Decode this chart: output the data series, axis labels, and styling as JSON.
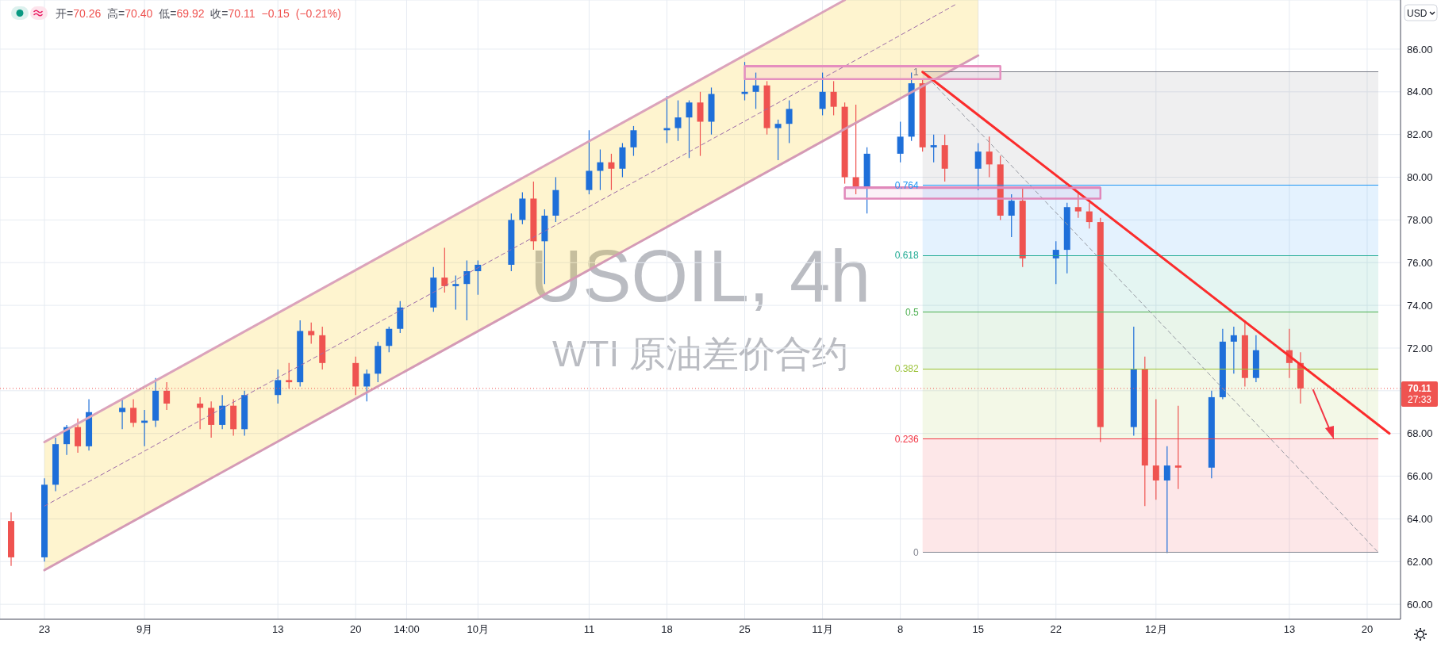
{
  "chart_data": {
    "type": "candlestick",
    "title": "USOIL, 4h",
    "subtitle": "WTI 原油差价合约",
    "ylabel": "USD",
    "annotations": [
      "开=70.26 高=70.40 低=69.92 收=70.11 −0.15 (−0.21%)",
      "27:33"
    ],
    "x": [
      "--08-20",
      "--08-23",
      "--08-24",
      "--08-25",
      "--08-26",
      "--08-27",
      "--08-30",
      "--08-31",
      "--09-01",
      "--09-02",
      "--09-03",
      "--09-06",
      "--09-07",
      "--09-08",
      "--09-09",
      "--09-10",
      "--09-13",
      "--09-14",
      "--09-15",
      "--09-16",
      "--09-17",
      "--09-20",
      "--09-21",
      "--09-22",
      "--09-23",
      "--09-24",
      "--09-27",
      "--09-28",
      "--09-29",
      "--09-30",
      "--10-01",
      "--10-04",
      "--10-05",
      "--10-06",
      "--10-07",
      "--10-08",
      "--10-11",
      "--10-12",
      "--10-13",
      "--10-14",
      "--10-15",
      "--10-18",
      "--10-19",
      "--10-20",
      "--10-21",
      "--10-22",
      "--10-25",
      "--10-26",
      "--10-27",
      "--10-28",
      "--10-29",
      "--11-01",
      "--11-02",
      "--11-03",
      "--11-04",
      "--11-05",
      "--11-08",
      "--11-09",
      "--11-10",
      "--11-11",
      "--11-12",
      "--11-15",
      "--11-16",
      "--11-17",
      "--11-18",
      "--11-19",
      "--11-22",
      "--11-23",
      "--11-24",
      "--11-25",
      "--11-26",
      "--11-29",
      "--11-30",
      "--12-01",
      "--12-02",
      "--12-03",
      "--12-06",
      "--12-07",
      "--12-08",
      "--12-09",
      "--12-10",
      "--12-13",
      "--12-14"
    ],
    "ohlc": [
      [
        63.9,
        64.3,
        61.8,
        62.2
      ],
      [
        62.2,
        65.9,
        62.0,
        65.6
      ],
      [
        65.6,
        67.8,
        65.3,
        67.5
      ],
      [
        67.5,
        68.4,
        67.0,
        68.3
      ],
      [
        68.3,
        68.7,
        67.1,
        67.4
      ],
      [
        67.4,
        69.6,
        67.2,
        69.0
      ],
      [
        69.0,
        69.6,
        68.2,
        69.2
      ],
      [
        69.2,
        69.6,
        68.3,
        68.5
      ],
      [
        68.5,
        69.1,
        67.4,
        68.6
      ],
      [
        68.6,
        70.6,
        68.3,
        70.0
      ],
      [
        70.0,
        70.4,
        69.1,
        69.4
      ],
      [
        69.4,
        69.7,
        68.2,
        69.2
      ],
      [
        69.2,
        69.5,
        67.8,
        68.4
      ],
      [
        68.4,
        69.8,
        68.2,
        69.3
      ],
      [
        69.3,
        69.6,
        67.9,
        68.2
      ],
      [
        68.2,
        70.0,
        67.9,
        69.8
      ],
      [
        69.8,
        71.0,
        69.4,
        70.5
      ],
      [
        70.5,
        71.3,
        70.1,
        70.4
      ],
      [
        70.4,
        73.3,
        70.2,
        72.8
      ],
      [
        72.8,
        73.2,
        72.2,
        72.6
      ],
      [
        72.6,
        73.0,
        71.0,
        71.3
      ],
      [
        71.3,
        71.6,
        69.8,
        70.2
      ],
      [
        70.2,
        71.0,
        69.5,
        70.8
      ],
      [
        70.8,
        72.3,
        70.4,
        72.1
      ],
      [
        72.1,
        73.0,
        71.8,
        72.9
      ],
      [
        72.9,
        74.2,
        72.7,
        73.9
      ],
      [
        73.9,
        75.8,
        73.7,
        75.3
      ],
      [
        75.3,
        76.7,
        74.6,
        74.9
      ],
      [
        74.9,
        75.4,
        73.8,
        75.0
      ],
      [
        75.0,
        76.1,
        73.3,
        75.6
      ],
      [
        75.6,
        76.1,
        74.5,
        75.9
      ],
      [
        75.9,
        78.3,
        75.6,
        78.0
      ],
      [
        78.0,
        79.3,
        77.8,
        79.0
      ],
      [
        79.0,
        79.8,
        76.6,
        77.0
      ],
      [
        77.0,
        78.5,
        75.0,
        78.2
      ],
      [
        78.2,
        80.0,
        77.9,
        79.4
      ],
      [
        79.4,
        82.2,
        79.2,
        80.3
      ],
      [
        80.3,
        81.3,
        79.4,
        80.7
      ],
      [
        80.7,
        81.1,
        79.4,
        80.4
      ],
      [
        80.4,
        81.6,
        80.0,
        81.4
      ],
      [
        81.4,
        82.4,
        81.0,
        82.2
      ],
      [
        82.2,
        83.8,
        81.6,
        82.3
      ],
      [
        82.3,
        83.6,
        81.7,
        82.8
      ],
      [
        82.8,
        83.6,
        80.9,
        83.5
      ],
      [
        83.5,
        84.0,
        81.0,
        82.6
      ],
      [
        82.6,
        84.2,
        82.0,
        83.9
      ],
      [
        83.9,
        85.4,
        83.6,
        84.0
      ],
      [
        84.0,
        84.9,
        83.2,
        84.3
      ],
      [
        84.3,
        84.5,
        82.0,
        82.3
      ],
      [
        82.3,
        82.7,
        80.8,
        82.5
      ],
      [
        82.5,
        83.6,
        81.6,
        83.2
      ],
      [
        83.2,
        84.9,
        82.9,
        84.0
      ],
      [
        84.0,
        84.5,
        82.9,
        83.3
      ],
      [
        83.3,
        83.5,
        79.7,
        80.0
      ],
      [
        80.0,
        83.4,
        79.2,
        79.5
      ],
      [
        79.5,
        81.4,
        78.3,
        81.1
      ],
      [
        81.1,
        82.6,
        80.7,
        81.9
      ],
      [
        81.9,
        84.9,
        81.7,
        84.4
      ],
      [
        84.4,
        84.6,
        81.2,
        81.4
      ],
      [
        81.4,
        82.0,
        80.7,
        81.5
      ],
      [
        81.5,
        82.0,
        79.8,
        80.4
      ],
      [
        80.4,
        81.6,
        79.4,
        81.2
      ],
      [
        81.2,
        81.9,
        80.0,
        80.6
      ],
      [
        80.6,
        81.0,
        78.0,
        78.2
      ],
      [
        78.2,
        79.2,
        77.2,
        78.9
      ],
      [
        78.9,
        79.5,
        75.8,
        76.2
      ],
      [
        76.2,
        77.0,
        75.0,
        76.6
      ],
      [
        76.6,
        78.8,
        75.5,
        78.6
      ],
      [
        78.6,
        79.3,
        78.1,
        78.4
      ],
      [
        78.4,
        78.8,
        77.6,
        77.9
      ],
      [
        77.9,
        78.1,
        67.6,
        68.3
      ],
      [
        68.3,
        73.0,
        67.9,
        71.0
      ],
      [
        71.0,
        71.6,
        64.6,
        66.5
      ],
      [
        66.5,
        69.6,
        64.9,
        65.8
      ],
      [
        65.8,
        67.4,
        62.4,
        66.5
      ],
      [
        66.5,
        69.3,
        65.4,
        66.4
      ],
      [
        66.4,
        70.0,
        65.9,
        69.7
      ],
      [
        69.7,
        72.9,
        69.6,
        72.3
      ],
      [
        72.3,
        73.0,
        70.8,
        72.6
      ],
      [
        72.6,
        73.3,
        70.2,
        70.6
      ],
      [
        70.6,
        72.6,
        70.4,
        71.9
      ],
      [
        71.9,
        72.9,
        70.6,
        71.3
      ],
      [
        71.3,
        71.8,
        69.4,
        70.11
      ]
    ],
    "colors": [
      "#ef5350",
      "#1e6fd9",
      "#1e6fd9",
      "#1e6fd9",
      "#ef5350",
      "#1e6fd9",
      "#1e6fd9",
      "#ef5350",
      "#1e6fd9",
      "#1e6fd9",
      "#ef5350",
      "#ef5350",
      "#ef5350",
      "#1e6fd9",
      "#ef5350",
      "#1e6fd9",
      "#1e6fd9",
      "#ef5350",
      "#1e6fd9",
      "#ef5350",
      "#ef5350",
      "#ef5350",
      "#1e6fd9",
      "#1e6fd9",
      "#1e6fd9",
      "#1e6fd9",
      "#1e6fd9",
      "#ef5350",
      "#1e6fd9",
      "#1e6fd9",
      "#1e6fd9",
      "#1e6fd9",
      "#1e6fd9",
      "#ef5350",
      "#1e6fd9",
      "#1e6fd9",
      "#1e6fd9",
      "#1e6fd9",
      "#ef5350",
      "#1e6fd9",
      "#1e6fd9",
      "#1e6fd9",
      "#1e6fd9",
      "#1e6fd9",
      "#ef5350",
      "#1e6fd9",
      "#1e6fd9",
      "#1e6fd9",
      "#ef5350",
      "#1e6fd9",
      "#1e6fd9",
      "#1e6fd9",
      "#ef5350",
      "#ef5350",
      "#ef5350",
      "#1e6fd9",
      "#1e6fd9",
      "#1e6fd9",
      "#ef5350",
      "#1e6fd9",
      "#ef5350",
      "#1e6fd9",
      "#ef5350",
      "#ef5350",
      "#1e6fd9",
      "#ef5350",
      "#1e6fd9",
      "#1e6fd9",
      "#ef5350",
      "#ef5350",
      "#ef5350",
      "#1e6fd9",
      "#ef5350",
      "#ef5350",
      "#1e6fd9",
      "#ef5350",
      "#1e6fd9",
      "#1e6fd9",
      "#1e6fd9",
      "#ef5350",
      "#1e6fd9",
      "#ef5350",
      "#ef5350"
    ],
    "xlim": [
      "--08-19",
      "--12-23"
    ],
    "xticks": [
      {
        "value": "--08-23",
        "label": "23"
      },
      {
        "value": "--09-01",
        "label": "9月"
      },
      {
        "value": "--09-13",
        "label": "13"
      },
      {
        "value": "--09-20",
        "label": "20"
      },
      {
        "value": "--09-24T14:00",
        "label": "14:00"
      },
      {
        "value": "--10-01",
        "label": "10月"
      },
      {
        "value": "--10-11",
        "label": "11"
      },
      {
        "value": "--10-18",
        "label": "18"
      },
      {
        "value": "--10-25",
        "label": "25"
      },
      {
        "value": "--11-01",
        "label": "11月"
      },
      {
        "value": "--11-08",
        "label": "8"
      },
      {
        "value": "--11-15",
        "label": "15"
      },
      {
        "value": "--11-22",
        "label": "22"
      },
      {
        "value": "--12-01",
        "label": "12月"
      },
      {
        "value": "--12-13",
        "label": "13"
      },
      {
        "value": "--12-20",
        "label": "20"
      }
    ],
    "ylim": [
      59.3,
      88.3
    ],
    "yticks": [
      {
        "value": 60,
        "label": "60.00"
      },
      {
        "value": 62,
        "label": "62.00"
      },
      {
        "value": 64,
        "label": "64.00"
      },
      {
        "value": 66,
        "label": "66.00"
      },
      {
        "value": 68,
        "label": "68.00"
      },
      {
        "value": 70,
        "label": null
      },
      {
        "value": 72,
        "label": "72.00"
      },
      {
        "value": 74,
        "label": "74.00"
      },
      {
        "value": 76,
        "label": "76.00"
      },
      {
        "value": 78,
        "label": "78.00"
      },
      {
        "value": 80,
        "label": "80.00"
      },
      {
        "value": 82,
        "label": "82.00"
      },
      {
        "value": 84,
        "label": "84.00"
      },
      {
        "value": 86,
        "label": "86.00"
      }
    ],
    "grid": true,
    "series": [
      {
        "type": "line",
        "color": "#9c6aa8",
        "line_style": "dashed",
        "x": [
          "--08-23",
          "--11-03",
          "--11-13",
          "--11-15"
        ],
        "values": [
          64.6,
          85.2,
          88.1,
          null
        ],
        "lower": [
          61.6,
          82.3,
          85.1,
          85.7
        ],
        "upper": [
          67.6,
          88.3,
          88.3,
          88.3
        ]
      },
      {
        "type": "line",
        "color": "#dba3bb",
        "x": [
          "--08-23",
          "--11-03"
        ],
        "values": [
          67.6,
          88.3
        ]
      },
      {
        "type": "line",
        "color": "#d49ab5",
        "x": [
          "--08-23",
          "--11-15"
        ],
        "values": [
          61.6,
          85.7
        ]
      },
      {
        "type": "line",
        "color": "#e58fbf",
        "x": [
          "--10-25",
          "--11-17"
        ],
        "values": [
          85.2,
          85.2
        ],
        "lower": [
          84.6,
          84.6
        ],
        "upper": [
          85.2,
          85.2
        ]
      },
      {
        "type": "line",
        "color": "#e088ba",
        "x": [
          "--11-03",
          "--11-26"
        ],
        "values": [
          79.5,
          79.5
        ],
        "lower": [
          79.0,
          79.0
        ],
        "upper": [
          79.5,
          79.5
        ]
      },
      {
        "type": "line",
        "name": "1",
        "color": "#787b86",
        "x": [
          "--11-10",
          "--12-21"
        ],
        "values": [
          84.93,
          84.93
        ],
        "lower": [
          79.62,
          79.62
        ],
        "upper": [
          84.93,
          84.93
        ]
      },
      {
        "type": "line",
        "name": "0.764",
        "color": "#2196f3",
        "x": [
          "--11-10",
          "--12-21"
        ],
        "values": [
          79.62,
          79.62
        ],
        "lower": [
          76.34,
          76.34
        ],
        "upper": [
          79.62,
          79.62
        ]
      },
      {
        "type": "line",
        "name": "0.618",
        "color": "#22ab94",
        "x": [
          "--11-10",
          "--12-21"
        ],
        "values": [
          76.34,
          76.34
        ],
        "lower": [
          73.68,
          73.68
        ],
        "upper": [
          76.34,
          76.34
        ]
      },
      {
        "type": "line",
        "name": "0.5",
        "color": "#4caf50",
        "x": [
          "--11-10",
          "--12-21"
        ],
        "values": [
          73.68,
          73.68
        ],
        "lower": [
          71.03,
          71.03
        ],
        "upper": [
          73.68,
          73.68
        ]
      },
      {
        "type": "line",
        "name": "0.382",
        "color": "#9cc33a",
        "x": [
          "--11-10",
          "--12-21"
        ],
        "values": [
          71.03,
          71.03
        ],
        "lower": [
          67.74,
          67.74
        ],
        "upper": [
          71.03,
          71.03
        ]
      },
      {
        "type": "line",
        "name": "0.236",
        "color": "#f23645",
        "x": [
          "--11-10",
          "--12-21"
        ],
        "values": [
          67.74,
          67.74
        ],
        "lower": [
          62.43,
          62.43
        ],
        "upper": [
          67.74,
          67.74
        ]
      },
      {
        "type": "line",
        "name": "0",
        "color": "#80838e",
        "x": [
          "--11-10",
          "--12-21"
        ],
        "values": [
          62.43,
          62.43
        ]
      },
      {
        "type": "line",
        "color": "#9598a1",
        "line_style": "dashed",
        "x": [
          "--11-10",
          "--12-21"
        ],
        "values": [
          84.93,
          62.43
        ]
      },
      {
        "type": "line",
        "color": "#fb2c2c",
        "x": [
          "--11-10",
          "--12-22"
        ],
        "values": [
          84.93,
          68.0
        ]
      }
    ],
    "ref_lines": [
      {
        "axis": "y",
        "value": 70.11,
        "label": "70.11",
        "color": "#ef5350",
        "line_style": "dotted"
      }
    ]
  }
}
